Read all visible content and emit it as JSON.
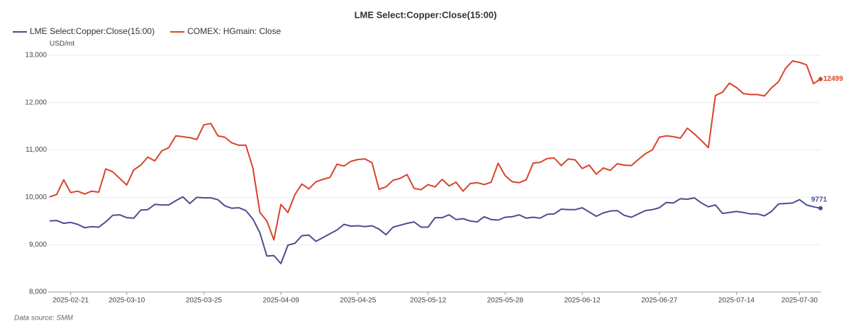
{
  "chart_data": {
    "type": "line",
    "title": "LME Select:Copper:Close(15:00)",
    "y_unit": "USD/mt",
    "source": "Data source:  SMM",
    "categories": [
      null,
      null,
      null,
      "2025-02-21",
      null,
      null,
      null,
      null,
      null,
      null,
      null,
      "2025-03-10",
      null,
      null,
      null,
      null,
      null,
      null,
      null,
      null,
      null,
      null,
      "2025-03-25",
      null,
      null,
      null,
      null,
      null,
      null,
      null,
      null,
      null,
      null,
      "2025-04-09",
      null,
      null,
      null,
      null,
      null,
      null,
      null,
      null,
      null,
      null,
      "2025-04-25",
      null,
      null,
      null,
      null,
      null,
      null,
      null,
      null,
      null,
      "2025-05-12",
      null,
      null,
      null,
      null,
      null,
      null,
      null,
      null,
      null,
      null,
      "2025-05-28",
      null,
      null,
      null,
      null,
      null,
      null,
      null,
      null,
      null,
      null,
      "2025-06-12",
      null,
      null,
      null,
      null,
      null,
      null,
      null,
      null,
      null,
      null,
      "2025-06-27",
      null,
      null,
      null,
      null,
      null,
      null,
      null,
      null,
      null,
      null,
      "2025-07-14",
      null,
      null,
      null,
      null,
      null,
      null,
      null,
      null,
      "2025-07-30",
      null,
      null,
      null
    ],
    "series": [
      {
        "name": "LME Select:Copper:Close(15:00)",
        "color": "#4b4e8f",
        "values": [
          9500,
          9510,
          9450,
          9470,
          9430,
          9360,
          9380,
          9370,
          9480,
          9620,
          9630,
          9570,
          9560,
          9730,
          9740,
          9850,
          9840,
          9840,
          9930,
          10010,
          9870,
          10000,
          9990,
          9990,
          9950,
          9820,
          9770,
          9780,
          9720,
          9540,
          9250,
          8760,
          8770,
          8600,
          8990,
          9030,
          9190,
          9200,
          9070,
          9150,
          9230,
          9310,
          9430,
          9390,
          9400,
          9380,
          9400,
          9330,
          9210,
          9370,
          9410,
          9450,
          9480,
          9370,
          9370,
          9570,
          9570,
          9630,
          9530,
          9550,
          9500,
          9480,
          9590,
          9530,
          9520,
          9580,
          9590,
          9630,
          9560,
          9580,
          9560,
          9640,
          9650,
          9750,
          9740,
          9740,
          9780,
          9690,
          9600,
          9670,
          9710,
          9720,
          9620,
          9580,
          9650,
          9720,
          9740,
          9780,
          9890,
          9880,
          9970,
          9960,
          9990,
          9880,
          9800,
          9840,
          9660,
          9680,
          9700,
          9680,
          9650,
          9650,
          9610,
          9700,
          9860,
          9870,
          9880,
          9950,
          9840,
          9800,
          9771
        ]
      },
      {
        "name": "COMEX: HGmain: Close",
        "color": "#d9432b",
        "values": [
          10010,
          10060,
          10370,
          10100,
          10130,
          10070,
          10130,
          10110,
          10600,
          10540,
          10400,
          10260,
          10580,
          10680,
          10850,
          10770,
          10980,
          11050,
          11300,
          11280,
          11260,
          11220,
          11530,
          11560,
          11300,
          11270,
          11150,
          11100,
          11100,
          10620,
          9680,
          9500,
          9100,
          9850,
          9680,
          10060,
          10280,
          10180,
          10330,
          10380,
          10420,
          10700,
          10660,
          10760,
          10800,
          10810,
          10730,
          10170,
          10220,
          10360,
          10400,
          10480,
          10190,
          10160,
          10270,
          10220,
          10380,
          10240,
          10320,
          10130,
          10290,
          10310,
          10270,
          10320,
          10720,
          10460,
          10330,
          10310,
          10370,
          10720,
          10740,
          10820,
          10830,
          10670,
          10810,
          10790,
          10610,
          10680,
          10490,
          10620,
          10570,
          10710,
          10680,
          10670,
          10800,
          10920,
          11000,
          11270,
          11300,
          11280,
          11250,
          11460,
          11340,
          11200,
          11050,
          12150,
          12220,
          12410,
          12320,
          12190,
          12170,
          12170,
          12140,
          12310,
          12440,
          12720,
          12880,
          12850,
          12800,
          12400,
          12499
        ]
      }
    ],
    "ylim": [
      8000,
      13000
    ],
    "yticks": [
      {
        "value": 8000,
        "label": "8,000"
      },
      {
        "value": 9000,
        "label": "9,000"
      },
      {
        "value": 10000,
        "label": "10,000"
      },
      {
        "value": 11000,
        "label": "11,000"
      },
      {
        "value": 12000,
        "label": "12,000"
      },
      {
        "value": 13000,
        "label": "13,000"
      }
    ],
    "grid": true
  }
}
